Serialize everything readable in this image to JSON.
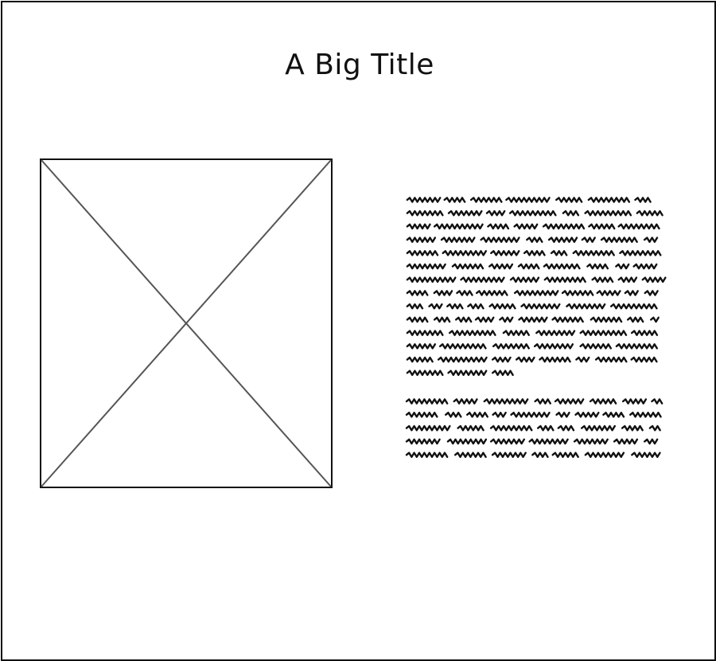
{
  "page": {
    "title": "A Big Title"
  },
  "image_placeholder": {
    "icon": "image-placeholder-icon"
  },
  "text_block": {
    "paragraph_1_line_count": 14,
    "paragraph_2_line_count": 5,
    "style": "scribbled placeholder text"
  },
  "colors": {
    "border": "#111111",
    "placeholder_stroke": "#555555",
    "scribble": "#111111",
    "background": "#ffffff"
  }
}
